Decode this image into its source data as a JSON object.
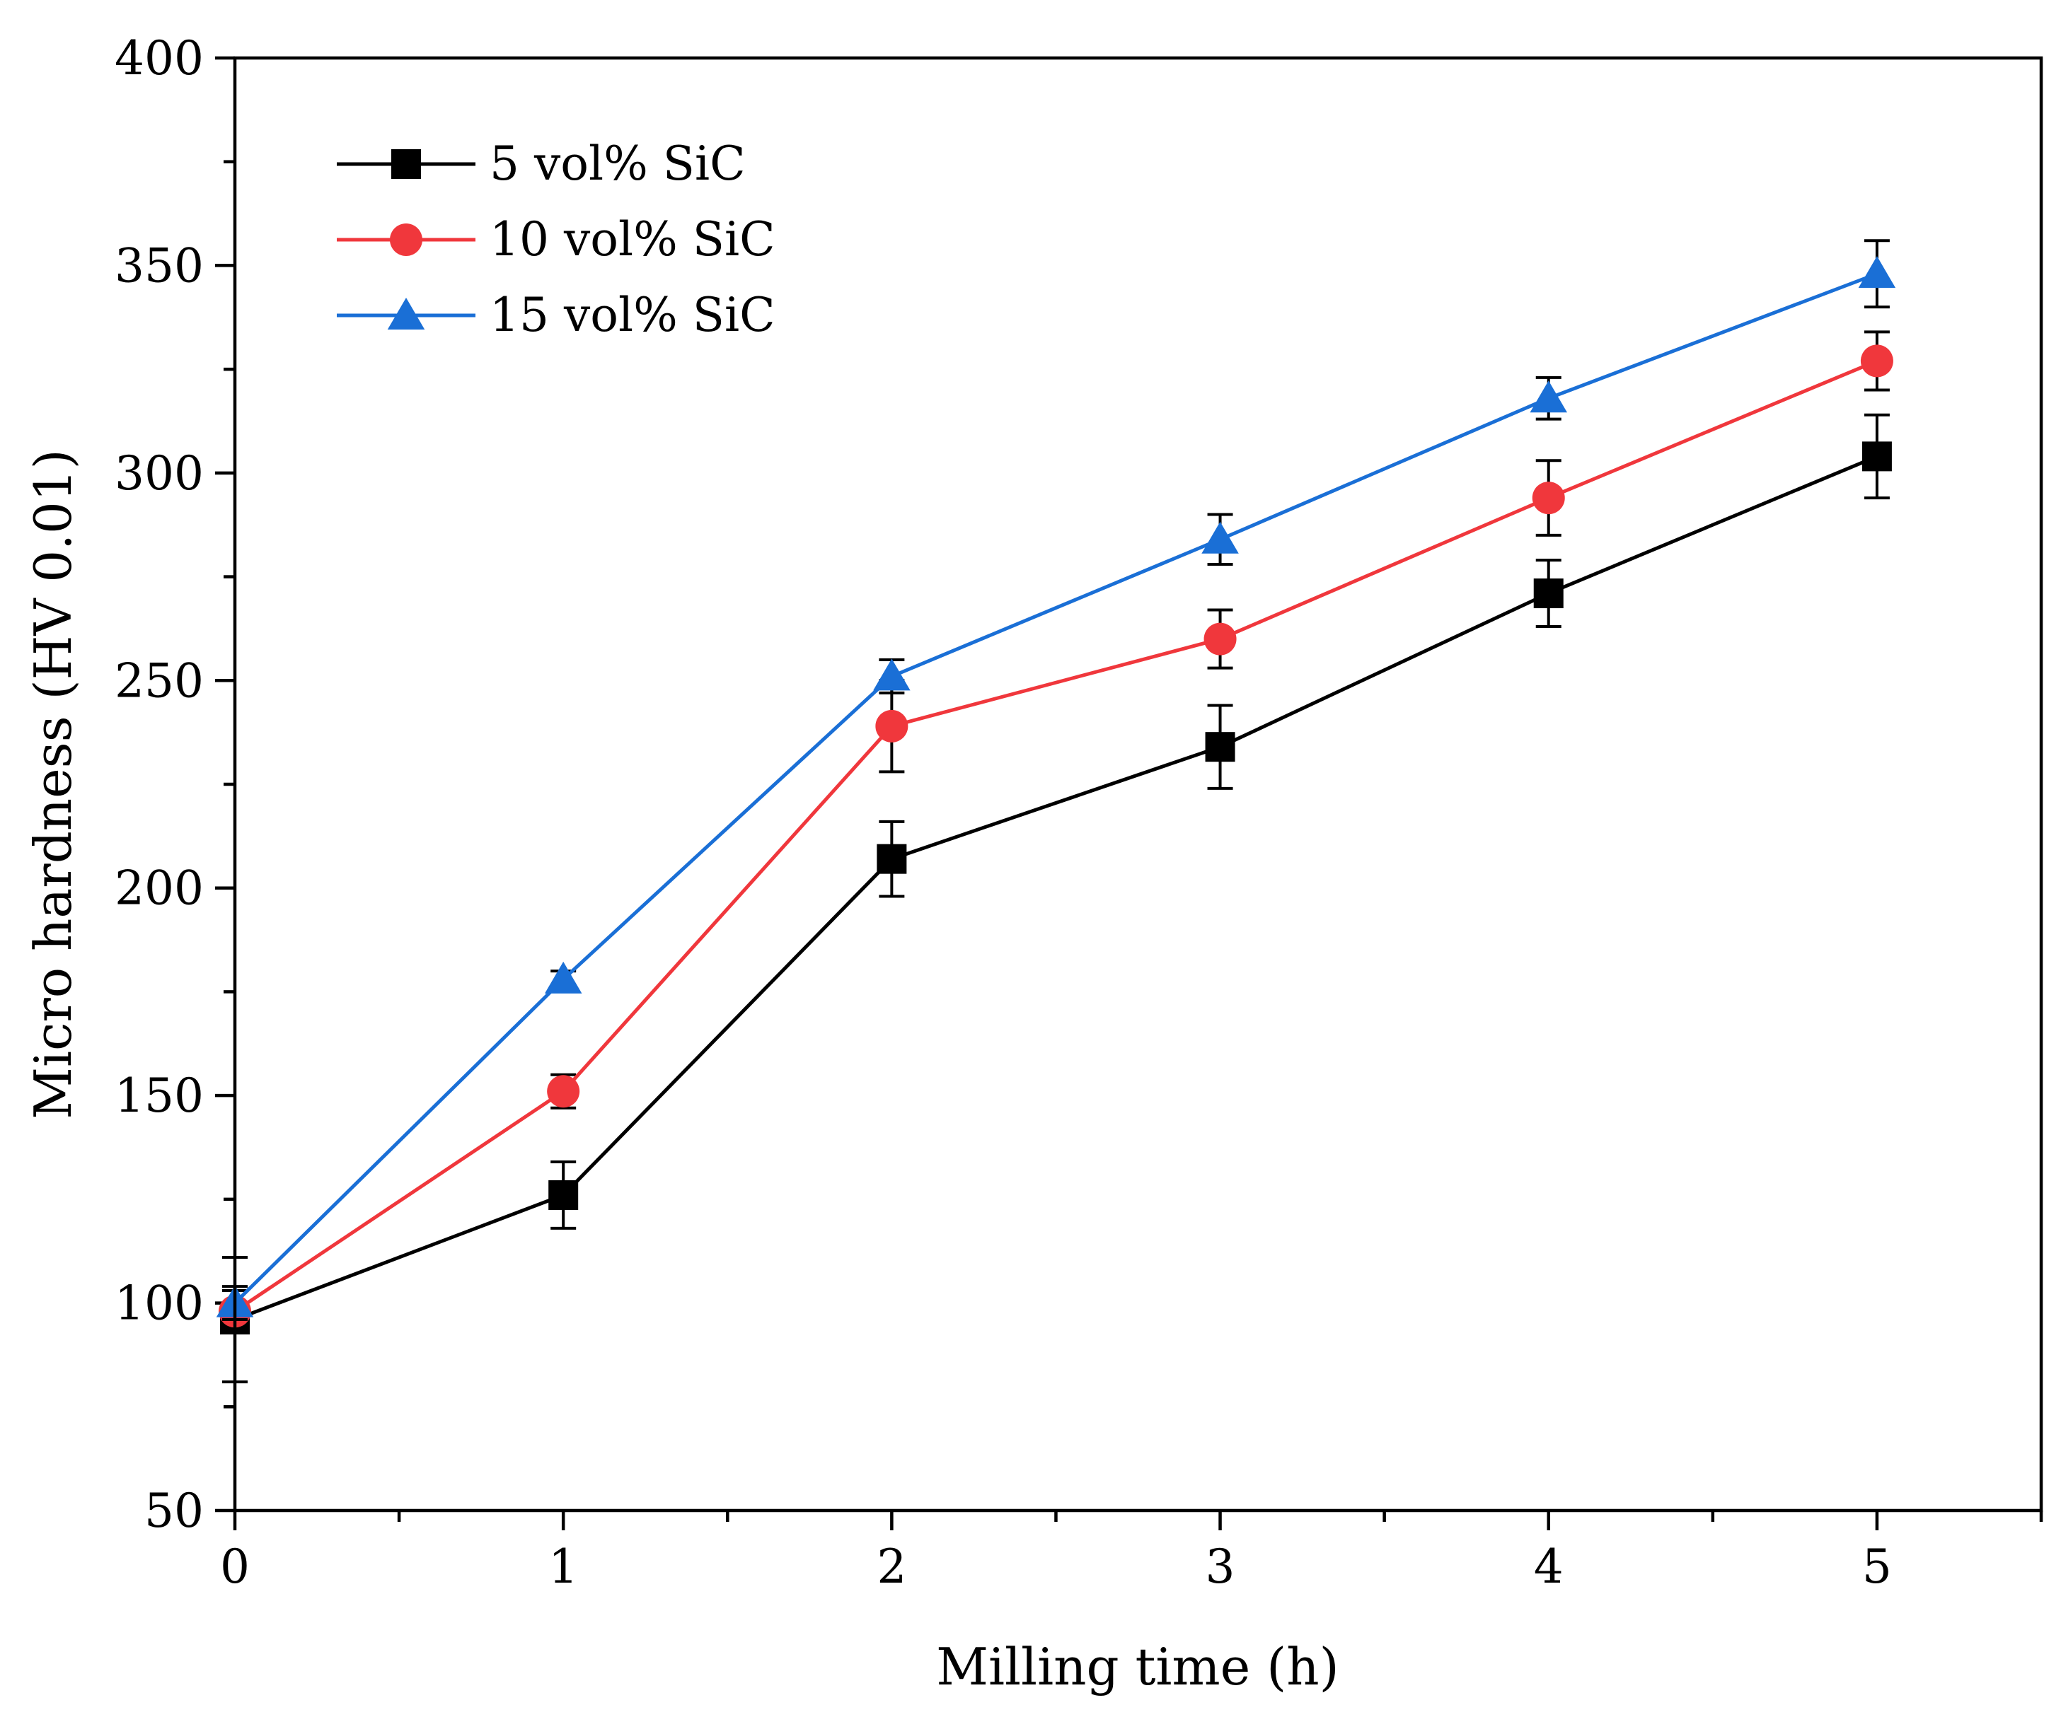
{
  "chart_data": {
    "type": "line",
    "title": "",
    "xlabel": "Milling time (h)",
    "ylabel": "Micro hardness (HV 0.01)",
    "xlim": [
      0,
      5.5
    ],
    "ylim": [
      50,
      400
    ],
    "x_ticks": [
      0,
      1,
      2,
      3,
      4,
      5
    ],
    "x_minor_ticks": [
      0.5,
      1.5,
      2.5,
      3.5,
      4.5,
      5.5
    ],
    "y_ticks": [
      50,
      100,
      150,
      200,
      250,
      300,
      350,
      400
    ],
    "y_minor_ticks": [
      75,
      125,
      175,
      225,
      275,
      325,
      375
    ],
    "legend_position": "top-left",
    "x": [
      0,
      1,
      2,
      3,
      4,
      5
    ],
    "series": [
      {
        "name": "5 vol% SiC",
        "color": "#000000",
        "marker": "square",
        "values": [
          96,
          126,
          207,
          234,
          271,
          304
        ],
        "errors": [
          15,
          8,
          9,
          10,
          8,
          10
        ]
      },
      {
        "name": "10 vol% SiC",
        "color": "#f0373c",
        "marker": "circle",
        "values": [
          98,
          151,
          239,
          260,
          294,
          327
        ],
        "errors": [
          5,
          4,
          11,
          7,
          9,
          7
        ]
      },
      {
        "name": "15 vol% SiC",
        "color": "#1a6fd6",
        "marker": "triangle",
        "values": [
          100,
          178,
          251,
          284,
          318,
          348
        ],
        "errors": [
          4,
          2,
          4,
          6,
          5,
          8
        ]
      }
    ]
  }
}
